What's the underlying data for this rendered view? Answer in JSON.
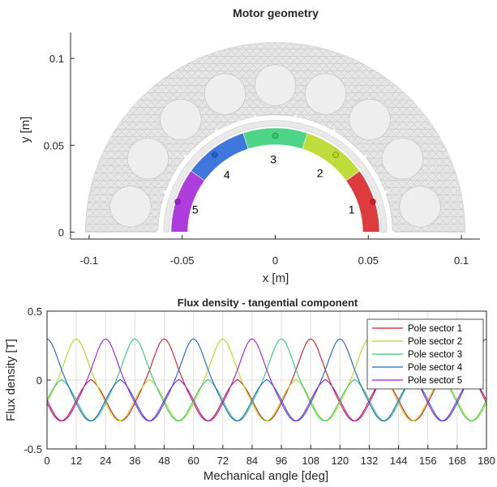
{
  "chart_data": [
    {
      "type": "mesh-plot",
      "title": "Motor geometry",
      "xlabel": "x [m]",
      "ylabel": "y [m]",
      "xlim": [
        -0.11,
        0.11
      ],
      "ylim": [
        -0.004,
        0.115
      ],
      "xticks": [
        -0.1,
        -0.05,
        0,
        0.05,
        0.1
      ],
      "xtick_labels": [
        "-0.1",
        "-0.05",
        "0",
        "0.05",
        "0.1"
      ],
      "yticks": [
        0,
        0.05,
        0.1
      ],
      "ytick_labels": [
        "0",
        "0.05",
        "0.1"
      ],
      "geometry": {
        "stator_outer_radius": 0.102,
        "stator_inner_radius": 0.063,
        "airgap_radius": 0.06,
        "rotor_outer_radius": 0.056,
        "rotor_inner_radius": 0.047,
        "stator_slots": 9
      },
      "sectors": [
        {
          "label": "1",
          "theta_start_deg": 0,
          "theta_end_deg": 36,
          "color": "#d7191c",
          "point": [
            0.0525,
            0.0175
          ],
          "label_pos": [
            0.041,
            0.013
          ]
        },
        {
          "label": "2",
          "theta_start_deg": 36,
          "theta_end_deg": 72,
          "color": "#b5d619",
          "point": [
            0.0325,
            0.0445
          ],
          "label_pos": [
            0.024,
            0.034
          ]
        },
        {
          "label": "3",
          "theta_start_deg": 72,
          "theta_end_deg": 108,
          "color": "#2ecc71",
          "point": [
            0,
            0.0555
          ],
          "label_pos": [
            -0.001,
            0.042
          ]
        },
        {
          "label": "4",
          "theta_start_deg": 108,
          "theta_end_deg": 144,
          "color": "#1f5fd6",
          "point": [
            -0.0325,
            0.0445
          ],
          "label_pos": [
            -0.026,
            0.033
          ]
        },
        {
          "label": "5",
          "theta_start_deg": 144,
          "theta_end_deg": 180,
          "color": "#a11ad6",
          "point": [
            -0.0525,
            0.0175
          ],
          "label_pos": [
            -0.043,
            0.013
          ]
        }
      ]
    },
    {
      "type": "line",
      "title": "Flux density - tangential component",
      "xlabel": "Mechanical angle [deg]",
      "ylabel": "Flux density [T]",
      "xlim": [
        0,
        180
      ],
      "ylim": [
        -0.5,
        0.5
      ],
      "xticks": [
        0,
        12,
        24,
        36,
        48,
        60,
        72,
        84,
        96,
        108,
        120,
        132,
        144,
        156,
        168,
        180
      ],
      "yticks": [
        -0.5,
        0,
        0.5
      ],
      "ytick_labels": [
        "-0.5",
        "0",
        "0.5"
      ],
      "grid": true,
      "legend_position": "top-right",
      "x_step": 1,
      "series": [
        {
          "name": "Pole sector 1",
          "color": "#d7191c",
          "phase_deg": 18,
          "values": []
        },
        {
          "name": "Pole sector 2",
          "color": "#b5d619",
          "phase_deg": 42,
          "values": []
        },
        {
          "name": "Pole sector 3",
          "color": "#2ecc71",
          "phase_deg": 6,
          "values": []
        },
        {
          "name": "Pole sector 4",
          "color": "#1f5fd6",
          "phase_deg": 30,
          "values": []
        },
        {
          "name": "Pole sector 5",
          "color": "#a11ad6",
          "phase_deg": 54,
          "values": []
        }
      ]
    }
  ]
}
